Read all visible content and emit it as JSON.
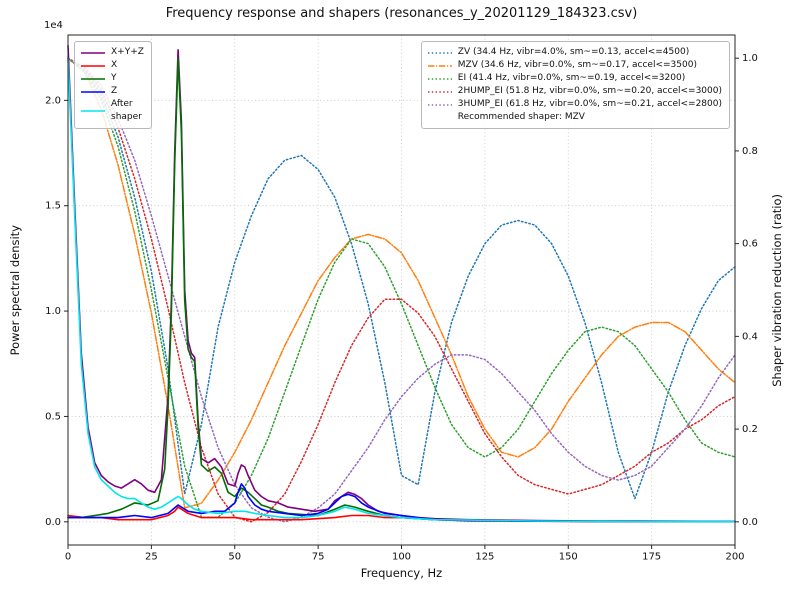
{
  "chart_data": {
    "type": "line",
    "title": "Frequency response and shapers (resonances_y_20201129_184323.csv)",
    "xlabel": "Frequency, Hz",
    "ylabel_left": "Power spectral density",
    "ylabel_right": "Shaper vibration reduction (ratio)",
    "y_left_offset_text": "1e4",
    "x_lim": [
      0,
      200
    ],
    "y_left_lim": [
      -0.11,
      2.31
    ],
    "y_right_lim": [
      -0.05,
      1.05
    ],
    "x_ticks": [
      0,
      25,
      50,
      75,
      100,
      125,
      150,
      175,
      200
    ],
    "y_left_ticks": [
      0.0,
      0.5,
      1.0,
      1.5,
      2.0
    ],
    "y_right_ticks": [
      0.0,
      0.2,
      0.4,
      0.6,
      0.8,
      1.0
    ],
    "grid": true,
    "recommended": "Recommended shaper: MZV",
    "psd_series": [
      {
        "name": "X+Y+Z",
        "legend_label": "X+Y+Z",
        "color": "#800080",
        "dash": "solid",
        "x": [
          0,
          2,
          4,
          6,
          8,
          10,
          12,
          14,
          16,
          18,
          20,
          22,
          24,
          26,
          28,
          30,
          31,
          32,
          33,
          34,
          35,
          36,
          37,
          38,
          39,
          40,
          42,
          44,
          46,
          48,
          50,
          51,
          52,
          53,
          54,
          56,
          58,
          60,
          63,
          66,
          70,
          74,
          78,
          80,
          82,
          84,
          86,
          88,
          90,
          93,
          96,
          100,
          105,
          110,
          120,
          130,
          140,
          160,
          180,
          200
        ],
        "y": [
          2.26,
          1.5,
          0.8,
          0.45,
          0.28,
          0.22,
          0.19,
          0.17,
          0.16,
          0.18,
          0.2,
          0.18,
          0.15,
          0.14,
          0.2,
          0.6,
          1.05,
          1.75,
          2.24,
          1.9,
          1.1,
          0.86,
          0.8,
          0.78,
          0.48,
          0.3,
          0.28,
          0.3,
          0.26,
          0.18,
          0.17,
          0.23,
          0.27,
          0.26,
          0.22,
          0.15,
          0.12,
          0.1,
          0.09,
          0.07,
          0.06,
          0.05,
          0.06,
          0.1,
          0.12,
          0.14,
          0.13,
          0.11,
          0.08,
          0.05,
          0.04,
          0.03,
          0.02,
          0.015,
          0.01,
          0.008,
          0.006,
          0.004,
          0.003,
          0.002
        ]
      },
      {
        "name": "X",
        "legend_label": "X",
        "color": "#ff0000",
        "dash": "solid",
        "x": [
          0,
          5,
          10,
          15,
          20,
          25,
          30,
          32,
          33,
          34,
          36,
          38,
          40,
          45,
          50,
          55,
          60,
          70,
          80,
          85,
          90,
          95,
          100,
          110,
          120,
          140,
          160,
          180,
          200
        ],
        "y": [
          0.03,
          0.02,
          0.02,
          0.01,
          0.01,
          0.01,
          0.03,
          0.05,
          0.07,
          0.06,
          0.04,
          0.03,
          0.02,
          0.02,
          0.02,
          0.01,
          0.01,
          0.01,
          0.02,
          0.03,
          0.03,
          0.02,
          0.02,
          0.01,
          0.005,
          0.003,
          0.002,
          0.001,
          0.001
        ]
      },
      {
        "name": "Y",
        "legend_label": "Y",
        "color": "#006e00",
        "dash": "solid",
        "x": [
          0,
          4,
          8,
          12,
          16,
          20,
          24,
          27,
          29,
          30,
          31,
          32,
          33,
          34,
          35,
          36,
          37,
          38,
          39,
          40,
          42,
          44,
          46,
          48,
          50,
          52,
          54,
          56,
          58,
          60,
          63,
          66,
          70,
          75,
          80,
          83,
          86,
          90,
          95,
          100,
          110,
          120,
          140,
          160,
          180,
          200
        ],
        "y": [
          0.02,
          0.02,
          0.03,
          0.04,
          0.06,
          0.09,
          0.08,
          0.1,
          0.25,
          0.55,
          1.0,
          1.7,
          2.2,
          1.85,
          1.05,
          0.82,
          0.78,
          0.76,
          0.45,
          0.27,
          0.24,
          0.26,
          0.23,
          0.14,
          0.12,
          0.16,
          0.14,
          0.11,
          0.08,
          0.07,
          0.05,
          0.04,
          0.035,
          0.03,
          0.06,
          0.08,
          0.07,
          0.05,
          0.03,
          0.02,
          0.01,
          0.008,
          0.004,
          0.002,
          0.001,
          0.001
        ]
      },
      {
        "name": "Z",
        "legend_label": "Z",
        "color": "#0000ff",
        "dash": "solid",
        "x": [
          0,
          5,
          10,
          15,
          20,
          25,
          30,
          33,
          36,
          40,
          44,
          47,
          50,
          51,
          52,
          53,
          54,
          56,
          58,
          60,
          65,
          70,
          75,
          78,
          80,
          82,
          84,
          86,
          88,
          90,
          95,
          100,
          110,
          120,
          140,
          160,
          180,
          200
        ],
        "y": [
          0.02,
          0.02,
          0.02,
          0.02,
          0.03,
          0.02,
          0.04,
          0.08,
          0.05,
          0.04,
          0.05,
          0.05,
          0.09,
          0.14,
          0.18,
          0.16,
          0.12,
          0.08,
          0.06,
          0.05,
          0.04,
          0.03,
          0.04,
          0.06,
          0.09,
          0.12,
          0.13,
          0.12,
          0.09,
          0.07,
          0.04,
          0.03,
          0.01,
          0.006,
          0.003,
          0.002,
          0.001,
          0.001
        ]
      },
      {
        "name": "After shaper",
        "legend_label": "After\nshaper",
        "color": "#00e5ee",
        "dash": "solid",
        "x": [
          0,
          2,
          4,
          6,
          8,
          10,
          12,
          14,
          16,
          18,
          20,
          22,
          24,
          26,
          28,
          30,
          32,
          33,
          34,
          36,
          38,
          40,
          45,
          50,
          53,
          56,
          60,
          65,
          70,
          75,
          80,
          83,
          86,
          90,
          95,
          100,
          110,
          120,
          140,
          160,
          180,
          200
        ],
        "y": [
          2.2,
          1.45,
          0.75,
          0.42,
          0.26,
          0.2,
          0.17,
          0.14,
          0.12,
          0.11,
          0.11,
          0.09,
          0.07,
          0.06,
          0.07,
          0.09,
          0.11,
          0.12,
          0.11,
          0.08,
          0.06,
          0.05,
          0.04,
          0.05,
          0.05,
          0.04,
          0.03,
          0.02,
          0.02,
          0.03,
          0.05,
          0.07,
          0.06,
          0.04,
          0.03,
          0.02,
          0.01,
          0.008,
          0.004,
          0.002,
          0.001,
          0.001
        ]
      }
    ],
    "shaper_x": [
      0,
      5,
      10,
      15,
      20,
      25,
      30,
      35,
      40,
      45,
      50,
      55,
      60,
      65,
      70,
      75,
      80,
      85,
      90,
      95,
      100,
      105,
      110,
      115,
      120,
      125,
      130,
      135,
      140,
      145,
      150,
      155,
      160,
      165,
      170,
      175,
      180,
      185,
      190,
      195,
      200
    ],
    "shaper_series": [
      {
        "name": "ZV",
        "label": "ZV (34.4 Hz, vibr=4.0%, sm~=0.13, accel<=4500)",
        "color": "#1f77b4",
        "dash": "dotted",
        "y": [
          1.0,
          0.975,
          0.92,
          0.83,
          0.7,
          0.54,
          0.33,
          0.06,
          0.21,
          0.42,
          0.56,
          0.66,
          0.74,
          0.78,
          0.79,
          0.76,
          0.7,
          0.6,
          0.47,
          0.3,
          0.1,
          0.08,
          0.28,
          0.43,
          0.53,
          0.6,
          0.64,
          0.65,
          0.64,
          0.6,
          0.53,
          0.43,
          0.3,
          0.15,
          0.05,
          0.15,
          0.28,
          0.38,
          0.46,
          0.52,
          0.55
        ]
      },
      {
        "name": "MZV",
        "label": "MZV (34.6 Hz, vibr=0.0%, sm~=0.17, accel<=3500)",
        "color": "#ff7f0e",
        "dash": "dashdot",
        "y": [
          1.0,
          0.97,
          0.89,
          0.77,
          0.62,
          0.45,
          0.25,
          0.03,
          0.04,
          0.09,
          0.15,
          0.22,
          0.3,
          0.38,
          0.45,
          0.52,
          0.57,
          0.61,
          0.62,
          0.61,
          0.58,
          0.52,
          0.44,
          0.36,
          0.27,
          0.2,
          0.15,
          0.14,
          0.16,
          0.2,
          0.26,
          0.31,
          0.36,
          0.4,
          0.42,
          0.43,
          0.43,
          0.41,
          0.37,
          0.33,
          0.3
        ]
      },
      {
        "name": "EI",
        "label": "EI (41.4 Hz, vibr=0.0%, sm~=0.19, accel<=3200)",
        "color": "#2ca02c",
        "dash": "dotted",
        "y": [
          1.0,
          0.97,
          0.91,
          0.81,
          0.67,
          0.5,
          0.31,
          0.12,
          0.01,
          0.01,
          0.04,
          0.1,
          0.18,
          0.28,
          0.38,
          0.48,
          0.56,
          0.61,
          0.6,
          0.55,
          0.47,
          0.38,
          0.29,
          0.21,
          0.16,
          0.14,
          0.16,
          0.2,
          0.26,
          0.32,
          0.37,
          0.41,
          0.42,
          0.41,
          0.38,
          0.33,
          0.28,
          0.22,
          0.17,
          0.15,
          0.14
        ]
      },
      {
        "name": "2HUMP_EI",
        "label": "2HUMP_EI (51.8 Hz, vibr=0.0%, sm~=0.20, accel<=3000)",
        "color": "#d62728",
        "dash": "dotted",
        "y": [
          1.0,
          0.98,
          0.93,
          0.85,
          0.74,
          0.61,
          0.46,
          0.3,
          0.16,
          0.06,
          0.01,
          0.0,
          0.02,
          0.06,
          0.13,
          0.21,
          0.3,
          0.38,
          0.44,
          0.48,
          0.48,
          0.45,
          0.4,
          0.33,
          0.26,
          0.19,
          0.14,
          0.1,
          0.08,
          0.07,
          0.06,
          0.07,
          0.08,
          0.1,
          0.12,
          0.15,
          0.17,
          0.2,
          0.22,
          0.25,
          0.27
        ]
      },
      {
        "name": "3HUMP_EI",
        "label": "3HUMP_EI (61.8 Hz, vibr=0.0%, sm~=0.21, accel<=2800)",
        "color": "#9467bd",
        "dash": "dotted",
        "y": [
          1.0,
          0.98,
          0.94,
          0.87,
          0.78,
          0.66,
          0.53,
          0.4,
          0.27,
          0.16,
          0.08,
          0.03,
          0.01,
          0.0,
          0.01,
          0.03,
          0.06,
          0.11,
          0.16,
          0.22,
          0.27,
          0.31,
          0.34,
          0.36,
          0.36,
          0.35,
          0.32,
          0.28,
          0.24,
          0.19,
          0.15,
          0.12,
          0.1,
          0.09,
          0.1,
          0.12,
          0.16,
          0.2,
          0.25,
          0.31,
          0.36
        ]
      }
    ]
  }
}
